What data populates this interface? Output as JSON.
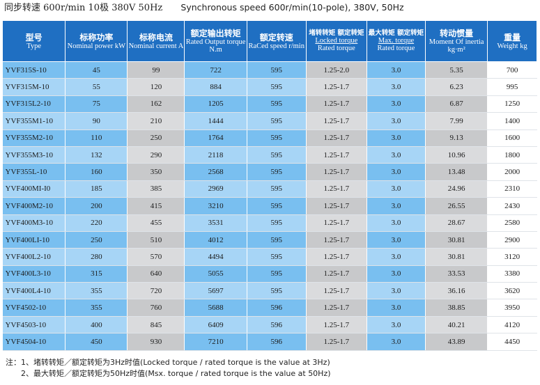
{
  "heading": {
    "cn": "同步转速 600r/min 10极 380V 50Hz",
    "en": "Synchronous speed 600r/min(10-pole), 380V, 50Hz"
  },
  "columns": [
    {
      "cn": "型号",
      "en": "Type"
    },
    {
      "cn": "标称功率",
      "en": "Nominal power kW"
    },
    {
      "cn": "标称电流",
      "en": "Nominal current A"
    },
    {
      "cn": "额定输出转矩",
      "en": "Rated Output torque N.m"
    },
    {
      "cn": "额定转速",
      "en": "RaCed speed r/min"
    },
    {
      "cn": "堵转转矩 额定转矩",
      "en1": "Locked torque",
      "en2": "Rated torque"
    },
    {
      "cn": "最大转矩 额定转矩",
      "en1": "Max. torque",
      "en2": "Rated torque"
    },
    {
      "cn": "转动惯量",
      "en": "Moment Of inertia kg·m²"
    },
    {
      "cn": "重量",
      "en": "Weight kg"
    }
  ],
  "rows": [
    [
      "YVF315S-10",
      "45",
      "99",
      "722",
      "595",
      "1.25-2.0",
      "3.0",
      "5.35",
      "700"
    ],
    [
      "YVF315M-10",
      "55",
      "120",
      "884",
      "595",
      "1.25-1.7",
      "3.0",
      "6.23",
      "995"
    ],
    [
      "YVF315L2-10",
      "75",
      "162",
      "1205",
      "595",
      "1.25-1.7",
      "3.0",
      "6.87",
      "1250"
    ],
    [
      "YVF355M1-10",
      "90",
      "210",
      "1444",
      "595",
      "1.25-1.7",
      "3.0",
      "7.99",
      "1400"
    ],
    [
      "YVF355M2-10",
      "110",
      "250",
      "1764",
      "595",
      "1.25-1.7",
      "3.0",
      "9.13",
      "1600"
    ],
    [
      "YVF355M3-10",
      "132",
      "290",
      "2118",
      "595",
      "1.25-1.7",
      "3.0",
      "10.96",
      "1800"
    ],
    [
      "YVF355L-10",
      "160",
      "350",
      "2568",
      "595",
      "1.25-1.7",
      "3.0",
      "13.48",
      "2000"
    ],
    [
      "YVF400MI-I0",
      "185",
      "385",
      "2969",
      "595",
      "1.25-1.7",
      "3.0",
      "24.96",
      "2310"
    ],
    [
      "YVF400M2-10",
      "200",
      "415",
      "3210",
      "595",
      "1.25-1.7",
      "3.0",
      "26.55",
      "2430"
    ],
    [
      "YVF400M3-10",
      "220",
      "455",
      "3531",
      "595",
      "1.25-1.7",
      "3.0",
      "28.67",
      "2580"
    ],
    [
      "YVF400LI-10",
      "250",
      "510",
      "4012",
      "595",
      "1.25-1.7",
      "3.0",
      "30.81",
      "2900"
    ],
    [
      "YVF400L2-10",
      "280",
      "570",
      "4494",
      "595",
      "1.25-1.7",
      "3.0",
      "30.81",
      "3120"
    ],
    [
      "YVF400L3-10",
      "315",
      "640",
      "5055",
      "595",
      "1.25-1.7",
      "3.0",
      "33.53",
      "3380"
    ],
    [
      "YVF400L4-10",
      "355",
      "720",
      "5697",
      "595",
      "1.25-1.7",
      "3.0",
      "36.16",
      "3620"
    ],
    [
      "YVF4502-10",
      "355",
      "760",
      "5688",
      "596",
      "1.25-1.7",
      "3.0",
      "38.85",
      "3950"
    ],
    [
      "YVF4503-10",
      "400",
      "845",
      "6409",
      "596",
      "1.25-1.7",
      "3.0",
      "40.21",
      "4120"
    ],
    [
      "YVF4504-10",
      "450",
      "930",
      "7210",
      "596",
      "1.25-1.7",
      "3.0",
      "43.89",
      "4450"
    ]
  ],
  "notes": {
    "line1": "注：1、堵转转矩／额定转矩为3Hz时值(Locked torque / rated torque is the value at 3Hz)",
    "line2": "2、最大转矩／额定转矩为50Hz时值(Msx.  torque / rated torque is the value at 50Hz)"
  },
  "colors": {
    "header_bg": "#1f6fc2",
    "blue_cell": "#79bff0",
    "gray_cell": "#c8c9cb",
    "white_cell": "#ffffff"
  }
}
